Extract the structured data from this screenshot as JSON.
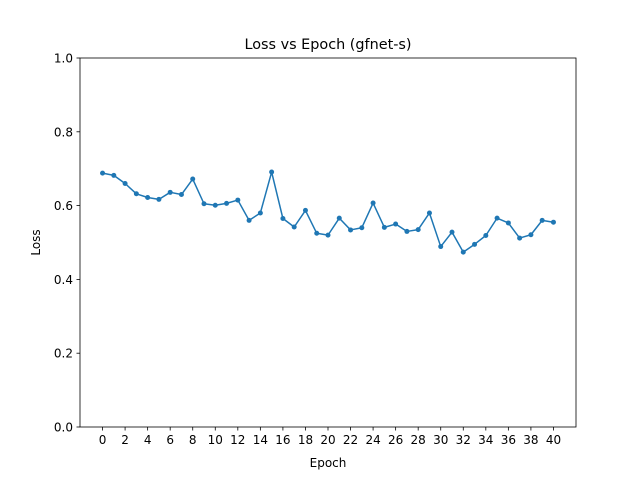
{
  "chart_data": {
    "type": "line",
    "title": "Loss vs Epoch  (gfnet-s)",
    "xlabel": "Epoch",
    "ylabel": "Loss",
    "ylim": [
      0.0,
      1.0
    ],
    "xlim": [
      -2,
      42
    ],
    "grid": false,
    "legend": "none",
    "x_ticks": [
      0,
      2,
      4,
      6,
      8,
      10,
      12,
      14,
      16,
      18,
      20,
      22,
      24,
      26,
      28,
      30,
      32,
      34,
      36,
      38,
      40
    ],
    "y_ticks": [
      0.0,
      0.2,
      0.4,
      0.6,
      0.8,
      1.0
    ],
    "y_tick_labels": [
      "0.0",
      "0.2",
      "0.4",
      "0.6",
      "0.8",
      "1.0"
    ],
    "series": [
      {
        "color": "#1f77b4",
        "marker": "circle",
        "x": [
          0,
          1,
          2,
          3,
          4,
          5,
          6,
          7,
          8,
          9,
          10,
          11,
          12,
          13,
          14,
          15,
          16,
          17,
          18,
          19,
          20,
          21,
          22,
          23,
          24,
          25,
          26,
          27,
          28,
          29,
          30,
          31,
          32,
          33,
          34,
          35,
          36,
          37,
          38,
          39,
          40
        ],
        "values": [
          0.688,
          0.682,
          0.66,
          0.632,
          0.622,
          0.617,
          0.636,
          0.63,
          0.672,
          0.605,
          0.601,
          0.606,
          0.615,
          0.56,
          0.58,
          0.691,
          0.565,
          0.542,
          0.587,
          0.525,
          0.52,
          0.566,
          0.534,
          0.54,
          0.607,
          0.541,
          0.55,
          0.53,
          0.535,
          0.58,
          0.489,
          0.528,
          0.474,
          0.495,
          0.519,
          0.566,
          0.553,
          0.512,
          0.521,
          0.56,
          0.555
        ]
      }
    ]
  }
}
